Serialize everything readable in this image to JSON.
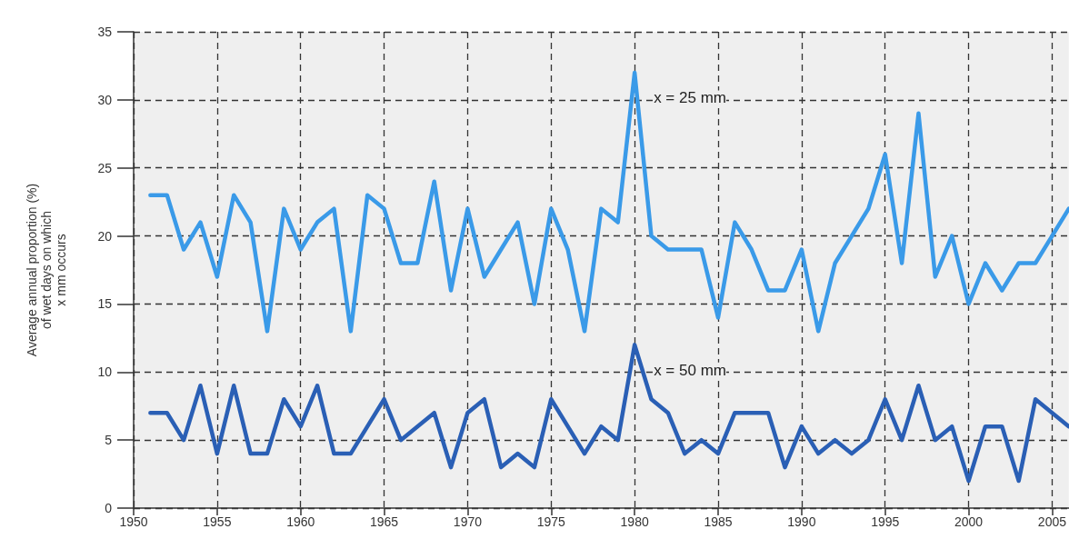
{
  "chart_data": {
    "type": "line",
    "ylabel": "Average annual proportion (%)\nof wet days on which\nx mm occurs",
    "x": [
      1951,
      1952,
      1953,
      1954,
      1955,
      1956,
      1957,
      1958,
      1959,
      1960,
      1961,
      1962,
      1963,
      1964,
      1965,
      1966,
      1967,
      1968,
      1969,
      1970,
      1971,
      1972,
      1973,
      1974,
      1975,
      1976,
      1977,
      1978,
      1979,
      1980,
      1981,
      1982,
      1983,
      1984,
      1985,
      1986,
      1987,
      1988,
      1989,
      1990,
      1991,
      1992,
      1993,
      1994,
      1995,
      1996,
      1997,
      1998,
      1999,
      2000,
      2001,
      2002,
      2003,
      2004,
      2005,
      2006
    ],
    "series": [
      {
        "name": "x = 25 mm",
        "color": "#3a9ae8",
        "values": [
          23,
          23,
          19,
          21,
          17,
          23,
          21,
          13,
          22,
          19,
          21,
          22,
          13,
          23,
          22,
          18,
          18,
          24,
          16,
          22,
          17,
          19,
          21,
          15,
          22,
          19,
          13,
          22,
          21,
          32,
          20,
          19,
          19,
          19,
          14,
          21,
          19,
          16,
          16,
          19,
          13,
          18,
          20,
          22,
          26,
          18,
          29,
          17,
          20,
          15,
          18,
          16,
          18,
          18,
          20,
          22
        ]
      },
      {
        "name": "x = 50 mm",
        "color": "#2a5fb5",
        "values": [
          7,
          7,
          5,
          9,
          4,
          9,
          4,
          4,
          8,
          6,
          9,
          4,
          4,
          6,
          8,
          5,
          6,
          7,
          3,
          7,
          8,
          3,
          4,
          3,
          8,
          6,
          4,
          6,
          5,
          12,
          8,
          7,
          4,
          5,
          4,
          7,
          7,
          7,
          3,
          6,
          4,
          5,
          4,
          5,
          8,
          5,
          9,
          5,
          6,
          2,
          6,
          6,
          2,
          8,
          7,
          6
        ]
      }
    ],
    "xlim": [
      1950,
      2006
    ],
    "xticks": [
      1950,
      1955,
      1960,
      1965,
      1970,
      1975,
      1980,
      1985,
      1990,
      1995,
      2000,
      2005
    ],
    "ylim": [
      0,
      35
    ],
    "yticks": [
      0,
      5,
      10,
      15,
      20,
      25,
      30,
      35
    ],
    "grid": true,
    "marker": "none",
    "line_style": "solid"
  }
}
